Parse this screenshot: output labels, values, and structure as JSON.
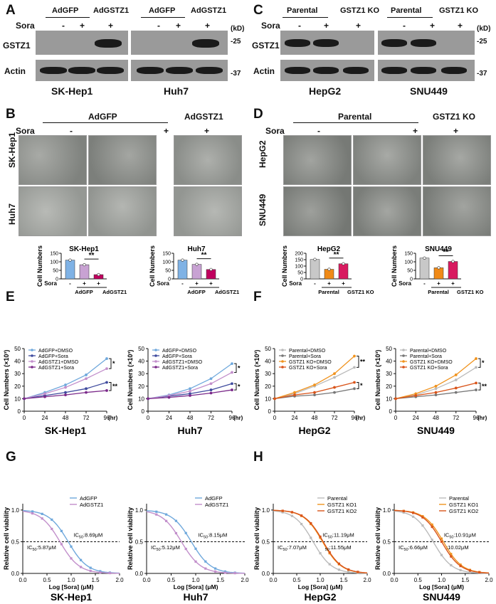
{
  "panel_labels": [
    "A",
    "B",
    "C",
    "D",
    "E",
    "F",
    "G",
    "H"
  ],
  "colors": {
    "light_blue": "#6fa8dc",
    "navy": "#3f4b9e",
    "lilac": "#c28fcb",
    "purple": "#7b2a8a",
    "light_gray": "#bbbbbb",
    "dark_gray": "#777777",
    "orange": "#f0931e",
    "dark_orange": "#d9541a",
    "blue_bar": "#7fb2e5",
    "lilac_bar": "#c8a2d3",
    "magenta_bar": "#c0005e",
    "gray_bar": "#c8c8c8",
    "orange_bar": "#f08a17",
    "pink_bar": "#d81b60"
  },
  "panelA": {
    "groups": [
      "AdGFP",
      "AdGSTZ1",
      "AdGFP",
      "AdGSTZ1"
    ],
    "sora_label": "Sora",
    "sora_marks": [
      "-",
      "+",
      "+",
      "-",
      "+",
      "+"
    ],
    "kd_label": "(kD)",
    "row_labels": [
      "GSTZ1",
      "Actin"
    ],
    "mw_markers": [
      "-25",
      "-37"
    ],
    "cell_lines": [
      "SK-Hep1",
      "Huh7"
    ]
  },
  "panelC": {
    "groups": [
      "Parental",
      "GSTZ1 KO",
      "Parental",
      "GSTZ1 KO"
    ],
    "sora_label": "Sora",
    "sora_marks": [
      "-",
      "+",
      "+",
      "-",
      "+",
      "+"
    ],
    "kd_label": "(kD)",
    "row_labels": [
      "GSTZ1",
      "Actin"
    ],
    "mw_markers": [
      "-25",
      "-37"
    ],
    "cell_lines": [
      "HepG2",
      "SNU449"
    ]
  },
  "panelB": {
    "groups": [
      "AdGFP",
      "AdGSTZ1"
    ],
    "sora_label": "Sora",
    "sora_marks": [
      "-",
      "+",
      "+"
    ],
    "row_labels": [
      "SK-Hep1",
      "Huh7"
    ]
  },
  "panelD": {
    "groups": [
      "Parental",
      "GSTZ1 KO"
    ],
    "sora_label": "Sora",
    "sora_marks": [
      "-",
      "+",
      "+"
    ],
    "row_labels": [
      "HepG2",
      "SNU449"
    ]
  },
  "bar_common": {
    "ylabel": "Cell Numbers",
    "sora_label": "Sora",
    "sig": "**"
  },
  "bars": [
    {
      "title": "SK-Hep1",
      "ylim": [
        0,
        150
      ],
      "ticks": [
        "0",
        "50",
        "100",
        "150"
      ],
      "values": [
        110,
        83,
        25
      ],
      "signs": [
        "-",
        "+",
        "+"
      ],
      "groups": [
        "AdGFP",
        "AdGSTZ1"
      ],
      "colors": [
        "#7fb2e5",
        "#c8a2d3",
        "#c0005e"
      ]
    },
    {
      "title": "Huh7",
      "ylim": [
        0,
        150
      ],
      "ticks": [
        "0",
        "50",
        "100",
        "150"
      ],
      "values": [
        110,
        85,
        55
      ],
      "signs": [
        "-",
        "+",
        "+"
      ],
      "groups": [
        "AdGFP",
        "AdGSTZ1"
      ],
      "colors": [
        "#7fb2e5",
        "#c8a2d3",
        "#c0005e"
      ]
    },
    {
      "title": "HepG2",
      "ylim": [
        0,
        200
      ],
      "ticks": [
        "0",
        "50",
        "100",
        "150",
        "200"
      ],
      "values": [
        152,
        75,
        118
      ],
      "signs": [
        "-",
        "+",
        "+"
      ],
      "groups": [
        "Parental",
        "GSTZ1 KO"
      ],
      "colors": [
        "#c8c8c8",
        "#f08a17",
        "#d81b60"
      ]
    },
    {
      "title": "SNU449",
      "ylim": [
        0,
        150
      ],
      "ticks": [
        "0",
        "50",
        "100",
        "150"
      ],
      "values": [
        122,
        65,
        102
      ],
      "signs": [
        "-",
        "+",
        "+"
      ],
      "groups": [
        "Parental",
        "GSTZ1 KO"
      ],
      "colors": [
        "#c8c8c8",
        "#f08a17",
        "#d81b60"
      ]
    }
  ],
  "line_common": {
    "ylabel": "Cell Numbers (×10³)",
    "x_unit": "(hr)",
    "x": [
      0,
      24,
      48,
      72,
      96
    ],
    "xticks": [
      "0",
      "24",
      "48",
      "72",
      "96"
    ],
    "yticks": [
      "0",
      "10",
      "20",
      "30",
      "40",
      "50"
    ],
    "ylim": [
      0,
      50
    ]
  },
  "chart_data": [
    {
      "type": "line",
      "title": "SK-Hep1",
      "x": [
        0,
        24,
        48,
        72,
        96
      ],
      "series": [
        {
          "name": "AdGFP+DMSO",
          "values": [
            10,
            15,
            21,
            29,
            42
          ],
          "color": "#6fa8dc"
        },
        {
          "name": "AdGFP+Sora",
          "values": [
            10,
            12.5,
            15,
            18,
            23
          ],
          "color": "#3f4b9e"
        },
        {
          "name": "AdGSTZ1+DMSO",
          "values": [
            10,
            14,
            19,
            26,
            34
          ],
          "color": "#c28fcb"
        },
        {
          "name": "AdGSTZ1+Sora",
          "values": [
            10,
            11.5,
            13,
            15,
            16.5
          ],
          "color": "#7b2a8a"
        }
      ],
      "sig": [
        "*",
        "**"
      ]
    },
    {
      "type": "line",
      "title": "Huh7",
      "x": [
        0,
        24,
        48,
        72,
        96
      ],
      "series": [
        {
          "name": "AdGFP+DMSO",
          "values": [
            10,
            13,
            18,
            26,
            38
          ],
          "color": "#6fa8dc"
        },
        {
          "name": "AdGFP+Sora",
          "values": [
            10,
            12,
            14,
            17,
            22
          ],
          "color": "#3f4b9e"
        },
        {
          "name": "AdGSTZ1+DMSO",
          "values": [
            10,
            12.5,
            16,
            22,
            31
          ],
          "color": "#c28fcb"
        },
        {
          "name": "AdGSTZ1+Sora",
          "values": [
            10,
            11,
            12.5,
            14.5,
            17
          ],
          "color": "#7b2a8a"
        }
      ],
      "sig": [
        "*",
        "*"
      ]
    },
    {
      "type": "line",
      "title": "HepG2",
      "x": [
        0,
        24,
        48,
        72,
        96
      ],
      "series": [
        {
          "name": "Parental+DMSO",
          "values": [
            10,
            14,
            20,
            27,
            35
          ],
          "color": "#bbbbbb"
        },
        {
          "name": "Parental+Sora",
          "values": [
            10,
            12,
            13,
            15,
            18
          ],
          "color": "#777777"
        },
        {
          "name": "GSTZ1 KO+DMSO",
          "values": [
            10,
            15,
            21,
            30,
            44
          ],
          "color": "#f0931e"
        },
        {
          "name": "GSTZ1 KO+Sora",
          "values": [
            10,
            13,
            15,
            19,
            23
          ],
          "color": "#d9541a"
        }
      ],
      "sig": [
        "**",
        "*"
      ]
    },
    {
      "type": "line",
      "title": "SNU449",
      "x": [
        0,
        24,
        48,
        72,
        96
      ],
      "series": [
        {
          "name": "Parental+DMSO",
          "values": [
            10,
            13,
            18,
            25,
            35
          ],
          "color": "#bbbbbb"
        },
        {
          "name": "Parental+Sora",
          "values": [
            10,
            11.5,
            13,
            15,
            17
          ],
          "color": "#777777"
        },
        {
          "name": "GSTZ1 KO+DMSO",
          "values": [
            10,
            14,
            20,
            29,
            42
          ],
          "color": "#f0931e"
        },
        {
          "name": "GSTZ1 KO+Sora",
          "values": [
            10,
            12.5,
            15,
            18.5,
            22.5
          ],
          "color": "#d9541a"
        }
      ],
      "sig": [
        "*",
        "**"
      ]
    }
  ],
  "dose_common": {
    "ylabel": "Relative cell viability",
    "xlabel": "Log [Sora] (μM)",
    "xticks": [
      "0.0",
      "0.5",
      "1.0",
      "1.5",
      "2.0"
    ],
    "yticks": [
      "0.0",
      "0.5",
      "1.0"
    ]
  },
  "dose_response": [
    {
      "title": "SK-Hep1",
      "curves": [
        {
          "name": "AdGFP",
          "log_ic50": 0.939,
          "color": "#6fa8dc"
        },
        {
          "name": "AdGSTZ1",
          "log_ic50": 0.769,
          "color": "#c28fcb"
        }
      ],
      "ic50_labels": [
        {
          "sub": "50",
          "text": ":8.69μM",
          "pre": "IC"
        },
        {
          "sub": "50",
          "text": ":5.87μM",
          "pre": "IC"
        }
      ]
    },
    {
      "title": "Huh7",
      "curves": [
        {
          "name": "AdGFP",
          "log_ic50": 0.911,
          "color": "#6fa8dc"
        },
        {
          "name": "AdGSTZ1",
          "log_ic50": 0.709,
          "color": "#c28fcb"
        }
      ],
      "ic50_labels": [
        {
          "sub": "50",
          "text": ":8.15μM",
          "pre": "IC"
        },
        {
          "sub": "50",
          "text": ":5.12μM",
          "pre": "IC"
        }
      ]
    },
    {
      "title": "HepG2",
      "curves": [
        {
          "name": "Parental",
          "log_ic50": 0.849,
          "color": "#bbbbbb"
        },
        {
          "name": "GSTZ1 KO1",
          "log_ic50": 1.049,
          "color": "#f0931e"
        },
        {
          "name": "GSTZ1 KO2",
          "log_ic50": 1.063,
          "color": "#d9541a"
        }
      ],
      "ic50_labels": [
        {
          "sub": "50",
          "text": ":11.19μM",
          "pre": "IC"
        },
        {
          "sub": "50",
          "text": ":7.07μM",
          "pre": "IC"
        },
        {
          "sub": "50",
          "text": ":11.55μM",
          "pre": ""
        }
      ]
    },
    {
      "title": "SNU449",
      "curves": [
        {
          "name": "Parental",
          "log_ic50": 0.823,
          "color": "#bbbbbb"
        },
        {
          "name": "GSTZ1 KO1",
          "log_ic50": 1.038,
          "color": "#f0931e"
        },
        {
          "name": "GSTZ1 KO2",
          "log_ic50": 1.001,
          "color": "#d9541a"
        }
      ],
      "ic50_labels": [
        {
          "sub": "50",
          "text": ":10.91μM",
          "pre": "IC"
        },
        {
          "sub": "50",
          "text": ":6.66μM",
          "pre": "IC"
        },
        {
          "sub": "",
          "text": ":10.02μM",
          "pre": ""
        }
      ]
    }
  ]
}
